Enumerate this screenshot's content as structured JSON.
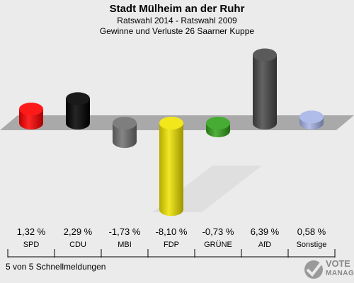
{
  "header": {
    "title": "Stadt Mülheim an der Ruhr",
    "subtitle": "Ratswahl 2014 - Ratswahl 2009",
    "description": "Gewinne und Verluste 26 Saarner Kuppe"
  },
  "footer": {
    "status": "5 von 5 Schnellmeldungen"
  },
  "logo": {
    "line1": "VOTE",
    "line2": "MANAGER"
  },
  "chart_data": {
    "type": "bar",
    "title": "Stadt Mülheim an der Ruhr",
    "categories": [
      "SPD",
      "CDU",
      "MBI",
      "FDP",
      "GRÜNE",
      "AfD",
      "Sonstige"
    ],
    "values": [
      1.32,
      2.29,
      -1.73,
      -8.1,
      -0.73,
      6.39,
      0.58
    ],
    "value_labels": [
      "1,32 %",
      "2,29 %",
      "-1,73 %",
      "-8,10 %",
      "-0,73 %",
      "6,39 %",
      "0,58 %"
    ],
    "colors": [
      "#ff0000",
      "#000000",
      "#707070",
      "#f0e400",
      "#33a31c",
      "#484848",
      "#a6b4e6"
    ],
    "ylim": [
      -8.1,
      6.39
    ],
    "grid": false,
    "legend": "none"
  }
}
